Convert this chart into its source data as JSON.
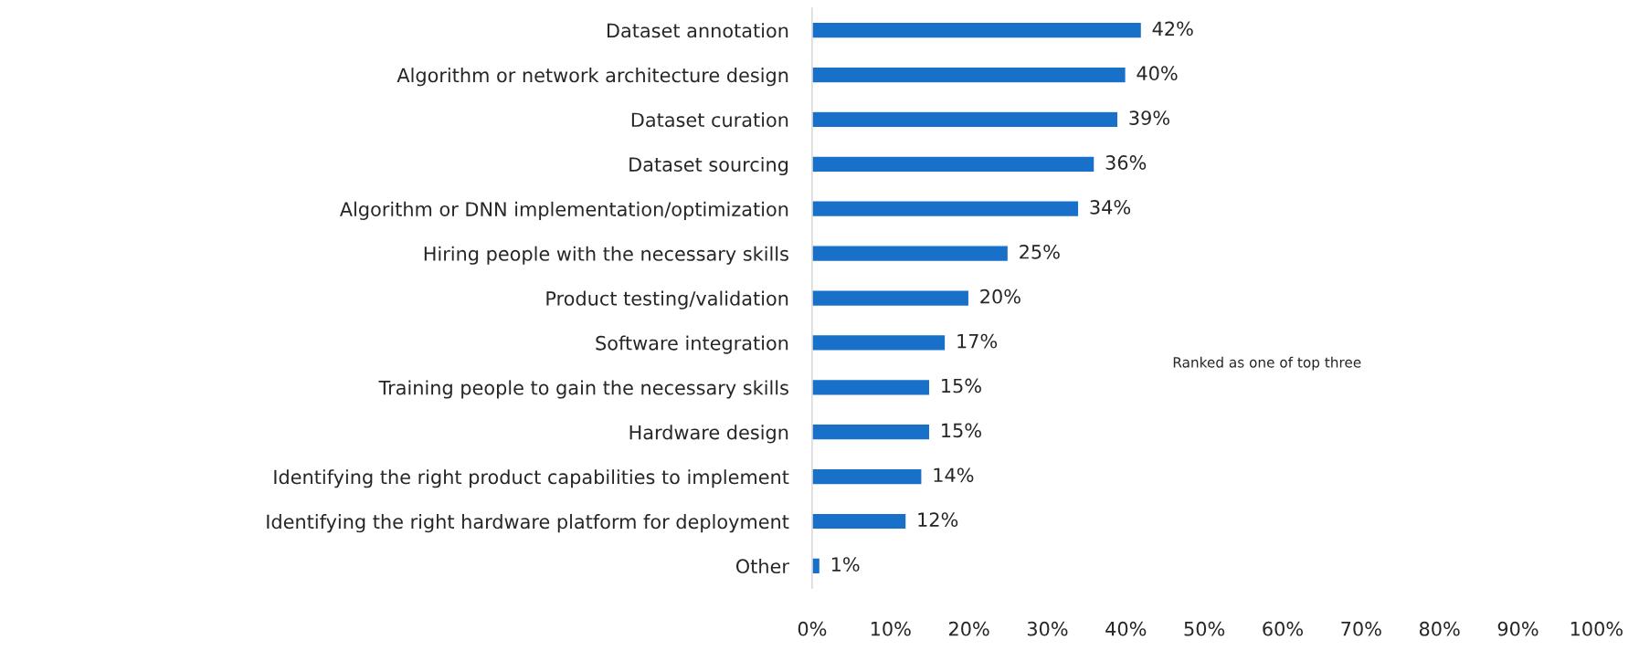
{
  "chart_data": {
    "type": "bar",
    "orientation": "horizontal",
    "categories": [
      "Dataset annotation",
      "Algorithm or network architecture design",
      "Dataset curation",
      "Dataset sourcing",
      "Algorithm or DNN implementation/optimization",
      "Hiring people with the necessary skills",
      "Product testing/validation",
      "Software integration",
      "Training people to gain the necessary skills",
      "Hardware design",
      "Identifying the right product capabilities to implement",
      "Identifying the right hardware platform for deployment",
      "Other"
    ],
    "values": [
      42,
      40,
      39,
      36,
      34,
      25,
      20,
      17,
      15,
      15,
      14,
      12,
      1
    ],
    "value_labels": [
      "42%",
      "40%",
      "39%",
      "36%",
      "34%",
      "25%",
      "20%",
      "17%",
      "15%",
      "15%",
      "14%",
      "12%",
      "1%"
    ],
    "color": "#1870c8",
    "xlim": [
      0,
      100
    ],
    "xticks": [
      {
        "value": 0,
        "label": "0%"
      },
      {
        "value": 10,
        "label": "10%"
      },
      {
        "value": 20,
        "label": "20%"
      },
      {
        "value": 30,
        "label": "30%"
      },
      {
        "value": 40,
        "label": "40%"
      },
      {
        "value": 50,
        "label": "50%"
      },
      {
        "value": 60,
        "label": "60%"
      },
      {
        "value": 70,
        "label": "70%"
      },
      {
        "value": 80,
        "label": "80%"
      },
      {
        "value": 90,
        "label": "90%"
      },
      {
        "value": 100,
        "label": "100%"
      }
    ],
    "annotations": [
      "Ranked as one of top three"
    ],
    "grid": false
  }
}
